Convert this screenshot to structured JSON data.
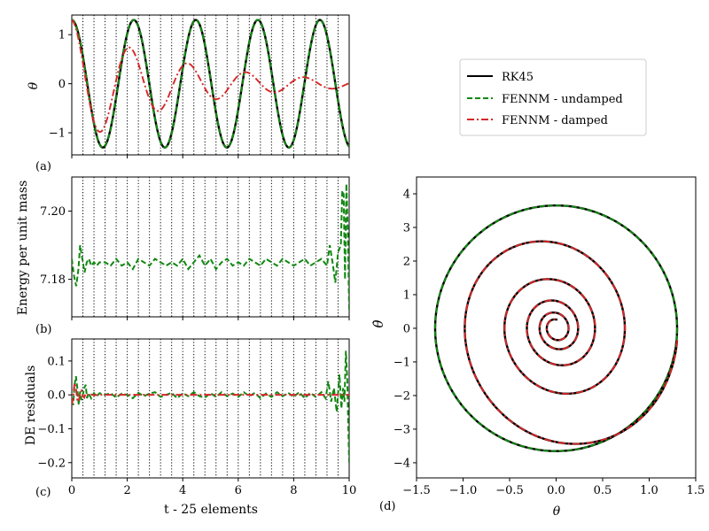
{
  "figure": {
    "panel_labels": [
      "(a)",
      "(b)",
      "(c)",
      "(d)"
    ],
    "x_label_time": "t - 25 elements",
    "legend": [
      {
        "label": "RK45",
        "color": "#000000",
        "dash": "solid"
      },
      {
        "label": "FENNM - undamped",
        "color": "#118811",
        "dash": "dashed"
      },
      {
        "label": "FENNM - damped",
        "color": "#d62728",
        "dash": "dashdot"
      }
    ]
  },
  "chart_data": [
    {
      "id": "a",
      "type": "line",
      "ylabel": "θ",
      "xlabel": "",
      "xlim": [
        0,
        10
      ],
      "ylim": [
        -1.45,
        1.4
      ],
      "xticks": [
        0,
        2,
        4,
        6,
        8,
        10
      ],
      "xtick_labels_shown": false,
      "yticks": [
        -1,
        0,
        1
      ],
      "ytick_labels": [
        "−1",
        "0",
        "1"
      ],
      "element_boundaries": [
        0.4,
        0.8,
        1.2,
        1.6,
        2.0,
        2.4,
        2.8,
        3.2,
        3.6,
        4.0,
        4.4,
        4.8,
        5.2,
        5.6,
        6.0,
        6.4,
        6.8,
        7.2,
        7.6,
        8.0,
        8.4,
        8.8,
        9.2,
        9.6
      ],
      "series": [
        {
          "name": "RK45",
          "model": "undamped",
          "theta0": 1.3,
          "omega": 2.81,
          "decay": 0
        },
        {
          "name": "FENNM - undamped",
          "model": "undamped",
          "theta0": 1.3,
          "omega": 2.81,
          "decay": 0
        },
        {
          "name": "FENNM - damped",
          "model": "damped",
          "theta0": 1.3,
          "omega": 3.0,
          "decay": 0.272
        }
      ]
    },
    {
      "id": "b",
      "type": "line",
      "ylabel": "Energy per unit mass",
      "xlabel": "",
      "xlim": [
        0,
        10
      ],
      "ylim": [
        7.169,
        7.21
      ],
      "xticks": [
        0,
        2,
        4,
        6,
        8,
        10
      ],
      "xtick_labels_shown": false,
      "yticks": [
        7.18,
        7.2
      ],
      "ytick_labels": [
        "7.18",
        "7.20"
      ],
      "element_boundaries": [
        0.4,
        0.8,
        1.2,
        1.6,
        2.0,
        2.4,
        2.8,
        3.2,
        3.6,
        4.0,
        4.4,
        4.8,
        5.2,
        5.6,
        6.0,
        6.4,
        6.8,
        7.2,
        7.6,
        8.0,
        8.4,
        8.8,
        9.2,
        9.6
      ],
      "series": [
        {
          "name": "FENNM - undamped",
          "baseline": 7.185,
          "x": [
            0.0,
            0.08,
            0.16,
            0.24,
            0.3,
            0.38,
            0.46,
            0.54,
            0.62,
            0.7,
            0.8,
            0.9,
            1.0,
            1.1,
            1.2,
            1.4,
            1.6,
            1.8,
            2.0,
            2.2,
            2.4,
            2.6,
            2.8,
            3.0,
            3.2,
            3.4,
            3.6,
            3.8,
            4.0,
            4.2,
            4.4,
            4.6,
            4.8,
            5.0,
            5.2,
            5.4,
            5.6,
            5.8,
            6.0,
            6.2,
            6.4,
            6.6,
            6.8,
            7.0,
            7.2,
            7.4,
            7.6,
            7.8,
            8.0,
            8.2,
            8.4,
            8.6,
            8.8,
            9.0,
            9.2,
            9.3,
            9.4,
            9.5,
            9.6,
            9.7,
            9.75,
            9.8,
            9.85,
            9.9,
            9.95,
            10.0
          ],
          "y": [
            7.186,
            7.181,
            7.178,
            7.183,
            7.19,
            7.186,
            7.182,
            7.185,
            7.186,
            7.184,
            7.185,
            7.184,
            7.185,
            7.185,
            7.185,
            7.184,
            7.186,
            7.184,
            7.185,
            7.183,
            7.186,
            7.185,
            7.184,
            7.186,
            7.185,
            7.184,
            7.185,
            7.184,
            7.186,
            7.183,
            7.185,
            7.187,
            7.184,
            7.186,
            7.183,
            7.185,
            7.186,
            7.184,
            7.185,
            7.184,
            7.186,
            7.185,
            7.184,
            7.186,
            7.185,
            7.184,
            7.186,
            7.185,
            7.184,
            7.185,
            7.186,
            7.184,
            7.185,
            7.186,
            7.184,
            7.19,
            7.185,
            7.179,
            7.188,
            7.19,
            7.206,
            7.205,
            7.18,
            7.208,
            7.194,
            7.171
          ]
        }
      ]
    },
    {
      "id": "c",
      "type": "line",
      "ylabel": "DE residuals",
      "xlabel": "t - 25 elements",
      "xlim": [
        0,
        10
      ],
      "ylim": [
        -0.245,
        0.165
      ],
      "xticks": [
        0,
        2,
        4,
        6,
        8,
        10
      ],
      "xtick_labels": [
        "0",
        "2",
        "4",
        "6",
        "8",
        "10"
      ],
      "yticks": [
        -0.2,
        -0.1,
        0.0,
        0.1
      ],
      "ytick_labels": [
        "−0.2",
        "−0.1",
        "0.0",
        "0.1"
      ],
      "element_boundaries": [
        0.4,
        0.8,
        1.2,
        1.6,
        2.0,
        2.4,
        2.8,
        3.2,
        3.6,
        4.0,
        4.4,
        4.8,
        5.2,
        5.6,
        6.0,
        6.4,
        6.8,
        7.2,
        7.6,
        8.0,
        8.4,
        8.8,
        9.2,
        9.6
      ],
      "series": [
        {
          "name": "FENNM - undamped",
          "x": [
            0.0,
            0.05,
            0.1,
            0.15,
            0.2,
            0.25,
            0.3,
            0.35,
            0.4,
            0.45,
            0.5,
            0.55,
            0.6,
            0.7,
            0.8,
            0.9,
            1.0,
            1.2,
            1.4,
            1.6,
            1.8,
            2.0,
            2.2,
            2.4,
            2.6,
            2.8,
            3.0,
            3.2,
            3.4,
            3.6,
            3.8,
            4.0,
            4.2,
            4.4,
            4.6,
            4.8,
            5.0,
            5.2,
            5.4,
            5.6,
            5.8,
            6.0,
            6.2,
            6.4,
            6.6,
            6.8,
            7.0,
            7.2,
            7.4,
            7.6,
            7.8,
            8.0,
            8.2,
            8.4,
            8.6,
            8.8,
            9.0,
            9.15,
            9.25,
            9.35,
            9.45,
            9.55,
            9.65,
            9.72,
            9.78,
            9.83,
            9.88,
            9.93,
            9.97,
            10.0
          ],
          "y": [
            -0.02,
            -0.03,
            0.03,
            0.055,
            0.02,
            -0.03,
            0.01,
            -0.015,
            0.0,
            0.02,
            0.03,
            -0.01,
            0.005,
            -0.01,
            0.005,
            -0.005,
            0.005,
            0.0,
            0.005,
            -0.008,
            0.004,
            0.0,
            -0.01,
            0.006,
            -0.004,
            0.004,
            0.008,
            -0.006,
            0.0,
            0.006,
            -0.01,
            0.005,
            -0.004,
            0.008,
            -0.004,
            -0.008,
            0.005,
            -0.006,
            0.008,
            -0.004,
            0.004,
            -0.006,
            0.008,
            -0.004,
            0.006,
            -0.01,
            0.004,
            -0.006,
            0.008,
            -0.004,
            0.006,
            -0.006,
            0.008,
            -0.01,
            0.006,
            -0.006,
            0.008,
            -0.01,
            0.04,
            -0.02,
            0.02,
            -0.05,
            0.06,
            -0.04,
            0.02,
            -0.02,
            0.13,
            0.05,
            -0.1,
            -0.2
          ]
        },
        {
          "name": "FENNM - damped",
          "x": [
            0.0,
            0.05,
            0.1,
            0.15,
            0.2,
            0.25,
            0.3,
            0.35,
            0.4,
            0.45,
            0.5,
            0.55,
            0.6,
            0.7,
            0.8,
            1.0,
            1.5,
            2.0,
            3.0,
            4.0,
            5.0,
            6.0,
            7.0,
            8.0,
            9.0,
            9.5,
            10.0
          ],
          "y": [
            -0.03,
            -0.005,
            0.035,
            0.02,
            -0.015,
            -0.02,
            0.005,
            0.012,
            -0.004,
            -0.008,
            0.004,
            0.002,
            -0.002,
            0.001,
            -0.001,
            0.0,
            0.0,
            0.0,
            0.0,
            0.0,
            0.0,
            0.0,
            0.0,
            0.0,
            0.0,
            0.0,
            0.0
          ]
        }
      ]
    },
    {
      "id": "d",
      "type": "line",
      "title": "",
      "xlabel": "θ",
      "ylabel": "θ̇",
      "xlim": [
        -1.5,
        1.5
      ],
      "ylim": [
        -4.45,
        4.5
      ],
      "xticks": [
        -1.5,
        -1.0,
        -0.5,
        0.0,
        0.5,
        1.0,
        1.5
      ],
      "xtick_labels": [
        "−1.5",
        "−1.0",
        "−0.5",
        "0.0",
        "0.5",
        "1.0",
        "1.5"
      ],
      "yticks": [
        -4,
        -3,
        -2,
        -1,
        0,
        1,
        2,
        3,
        4
      ],
      "ytick_labels": [
        "−4",
        "−3",
        "−2",
        "−1",
        "0",
        "1",
        "2",
        "3",
        "4"
      ],
      "series": [
        {
          "name": "RK45",
          "model": "undamped",
          "theta0": 1.3,
          "omega": 2.81,
          "decay": 0
        },
        {
          "name": "FENNM - undamped",
          "model": "undamped",
          "theta0": 1.3,
          "omega": 2.81,
          "decay": 0
        },
        {
          "name": "RK45",
          "model": "damped",
          "theta0": 1.3,
          "omega": 3.0,
          "decay": 0.272
        },
        {
          "name": "FENNM - damped",
          "model": "damped",
          "theta0": 1.3,
          "omega": 3.0,
          "decay": 0.272
        }
      ]
    }
  ]
}
